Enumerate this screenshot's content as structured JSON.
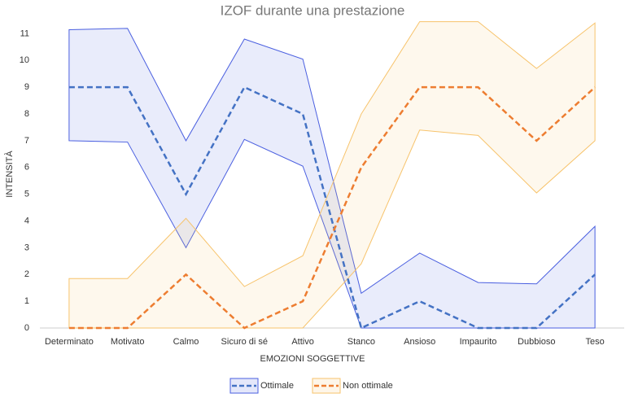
{
  "chart_data": {
    "type": "band-line",
    "title": "IZOF durante una prestazione",
    "x_label": "EMOZIONI SOGGETTIVE",
    "y_label": "INTENSITÀ",
    "categories": [
      "Determinato",
      "Motivato",
      "Calmo",
      "Sicuro di sé",
      "Attivo",
      "Stanco",
      "Ansioso",
      "Impaurito",
      "Dubbioso",
      "Teso"
    ],
    "series": [
      {
        "name": "Ottimale",
        "color": "#4472c4",
        "band_color": "#4a5fe0",
        "values": [
          9,
          9,
          5,
          9,
          8,
          0,
          1,
          0,
          0,
          2
        ],
        "upper": [
          11.15,
          11.2,
          7.0,
          10.8,
          10.05,
          1.3,
          2.8,
          1.7,
          1.65,
          3.8
        ],
        "lower": [
          7.0,
          6.95,
          3.0,
          7.05,
          6.05,
          0,
          0,
          0,
          0,
          0
        ]
      },
      {
        "name": "Non ottimale",
        "color": "#ed7d31",
        "band_color": "#f7c36b",
        "values": [
          0,
          0,
          2,
          0,
          1,
          6,
          9,
          9,
          7,
          9
        ],
        "upper": [
          1.85,
          1.85,
          4.1,
          1.55,
          2.7,
          8.0,
          11.45,
          11.45,
          9.7,
          11.4
        ],
        "lower": [
          0,
          0,
          0,
          0,
          0,
          2.4,
          7.4,
          7.2,
          5.05,
          7.0
        ]
      }
    ],
    "ylim": [
      0,
      11.5
    ],
    "yticks": [
      0,
      1,
      2,
      3,
      4,
      5,
      6,
      7,
      8,
      9,
      10,
      11
    ],
    "grid": false,
    "legend": "bottom"
  }
}
